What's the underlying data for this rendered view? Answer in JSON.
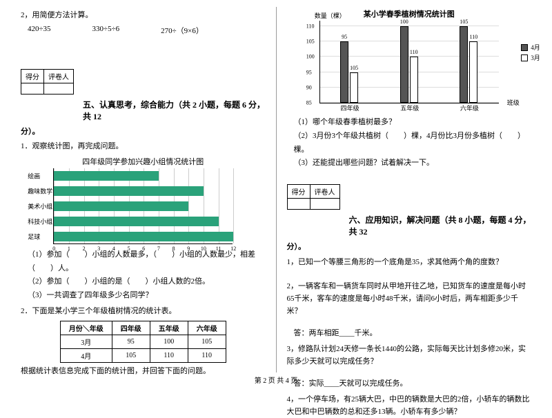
{
  "left": {
    "q2": {
      "prompt": "2，用简便方法计算。",
      "e1": "420÷35",
      "e2": "330÷5÷6",
      "e3": "270÷（9×6）"
    },
    "score": {
      "c1": "得分",
      "c2": "评卷人"
    },
    "sec5": {
      "title": "五、认真思考，综合能力（共 2 小题，每题 6 分，共 12",
      "tail": "分）。",
      "p1": "1．观察统计图，再完成问题。",
      "chart_title": "四年级同学参加兴趣小组情况统计图",
      "chart": {
        "labels": [
          "绘画",
          "趣味数学",
          "美术小组",
          "科技小组",
          "足球"
        ],
        "values": [
          7,
          10,
          9,
          11,
          12
        ],
        "xmax": 12,
        "bar_color": "#2aa27a",
        "grid_color": "#cccccc"
      },
      "s1": "（1）参加（　　）小组的人数最多，（　　）小组的人数最少，相差（　　）人。",
      "s2": "（2）参加（　　）小组的是（　　）小组人数的2倍。",
      "s3": "（3）一共调查了四年级多少名同学？",
      "p2": "2．下面是某小学三个年级植树情况的统计表。",
      "table": {
        "head": [
          "月份＼年级",
          "四年级",
          "五年级",
          "六年级"
        ],
        "rows": [
          [
            "3月",
            "95",
            "100",
            "105"
          ],
          [
            "4月",
            "105",
            "110",
            "110"
          ]
        ]
      },
      "after": "根据统计表信息完成下面的统计图，并回答下面的问题。"
    }
  },
  "right": {
    "vchart": {
      "title": "某小学春季植树情况统计图",
      "ylabel": "数量（棵）",
      "xlabel": "班级",
      "yticks": [
        85,
        90,
        95,
        100,
        105,
        110
      ],
      "ymin": 85,
      "ymax": 112,
      "groups": [
        "四年级",
        "五年级",
        "六年级"
      ],
      "series": [
        {
          "name": "4月",
          "color": "#555555",
          "values": [
            105,
            110,
            110
          ]
        },
        {
          "name": "3月",
          "color": "#ffffff",
          "values": [
            95,
            100,
            105
          ]
        }
      ],
      "value_labels": [
        [
          "95",
          "105"
        ],
        [
          "100",
          "110"
        ],
        [
          "105",
          "110"
        ]
      ]
    },
    "q1": "（1）哪个年级春季植树最多？",
    "q2": "（2）3月份3个年级共植树（　　）棵，4月份比3月份多植树（　　）棵。",
    "q3": "（3）还能提出哪些问题？试着解决一下。",
    "score": {
      "c1": "得分",
      "c2": "评卷人"
    },
    "sec6": {
      "title": "六、应用知识，解决问题（共 8 小题，每题 4 分，共 32",
      "tail": "分）。",
      "p1": "1，已知一个等腰三角形的一个底角是35，求其他两个角的度数？",
      "p2": "2，一辆客车和一辆货车同时从甲地开往乙地，已知货车的速度是每小时65千米，客车的速度是每小时48千米，请问6小时后，两车相距多少千米？",
      "a2": "答：两车相距____千米。",
      "p3": "3，修路队计划24天修一条长1440的公路，实际每天比计划多修20米，实际多少天就可以完成任务？",
      "a3": "答：实际____天就可以完成任务。",
      "p4": "4，一个停车场，有25辆大巴，中巴的辆数是大巴的2倍，小轿车的辆数比大巴和中巴辆数的总和还多13辆。小轿车有多少辆？"
    }
  },
  "footer": "第 2 页  共 4 页"
}
